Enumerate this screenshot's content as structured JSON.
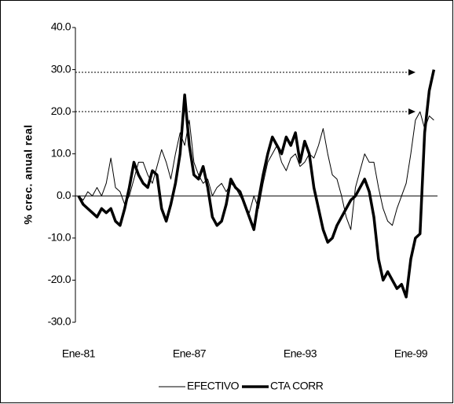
{
  "chart_data": {
    "type": "line",
    "y_label": "% crec. anual real",
    "categories": [
      "Ene-81",
      null,
      null,
      null,
      null,
      null,
      null,
      null,
      null,
      null,
      null,
      null,
      null,
      null,
      null,
      null,
      null,
      null,
      null,
      null,
      null,
      null,
      null,
      null,
      "Ene-87",
      null,
      null,
      null,
      null,
      null,
      null,
      null,
      null,
      null,
      null,
      null,
      null,
      null,
      null,
      null,
      null,
      null,
      null,
      null,
      null,
      null,
      null,
      null,
      "Ene-93",
      null,
      null,
      null,
      null,
      null,
      null,
      null,
      null,
      null,
      null,
      null,
      null,
      null,
      null,
      null,
      null,
      null,
      null,
      null,
      null,
      null,
      null,
      null,
      "Ene-99",
      null,
      null,
      null,
      null,
      null
    ],
    "series": [
      {
        "name": "EFECTIVO",
        "color": "#000000",
        "width": 1,
        "values": [
          0,
          -1,
          1,
          0,
          2,
          0,
          3,
          9,
          2,
          1,
          -2,
          0,
          4,
          8,
          8,
          5,
          3,
          7,
          11,
          8,
          4,
          10,
          15,
          12,
          18,
          8,
          5,
          3,
          4,
          0,
          2,
          3,
          1,
          3,
          2,
          0,
          -2,
          -4,
          0,
          -3,
          3,
          8,
          10,
          12,
          8,
          6,
          9,
          10,
          7,
          8,
          10,
          9,
          12,
          16,
          10,
          5,
          4,
          0,
          -5,
          -8,
          2,
          6,
          10,
          8,
          8,
          2,
          -3,
          -6,
          -7,
          -3,
          0,
          3,
          10,
          18,
          20,
          16,
          19,
          18
        ]
      },
      {
        "name": "CTA CORR",
        "color": "#000000",
        "width": 3.5,
        "values": [
          0,
          -2,
          -3,
          -4,
          -5,
          -3,
          -4,
          -3,
          -6,
          -7,
          -3,
          2,
          8,
          5,
          3,
          2,
          6,
          5,
          -3,
          -6,
          -2,
          3,
          10,
          24,
          12,
          5,
          4,
          7,
          2,
          -5,
          -7,
          -6,
          -2,
          4,
          2,
          1,
          -2,
          -5,
          -8,
          -1,
          5,
          10,
          14,
          12,
          10,
          14,
          12,
          15,
          8,
          13,
          10,
          2,
          -3,
          -8,
          -11,
          -10,
          -7,
          -5,
          -3,
          -1,
          0,
          2,
          4,
          1,
          -5,
          -15,
          -20,
          -18,
          -20,
          -22,
          -21,
          -24,
          -15,
          -10,
          -9,
          15,
          25,
          30
        ]
      }
    ],
    "ylim": [
      -30,
      40
    ],
    "yticks": [
      {
        "value": -30,
        "label": "-30.0"
      },
      {
        "value": -20,
        "label": "-20.0"
      },
      {
        "value": -10,
        "label": "-10.0"
      },
      {
        "value": 0,
        "label": "0.0"
      },
      {
        "value": 10,
        "label": "10.0"
      },
      {
        "value": 20,
        "label": "20.0"
      },
      {
        "value": 30,
        "label": "30.0"
      },
      {
        "value": 40,
        "label": "40.0"
      }
    ],
    "legend": "bottom"
  }
}
